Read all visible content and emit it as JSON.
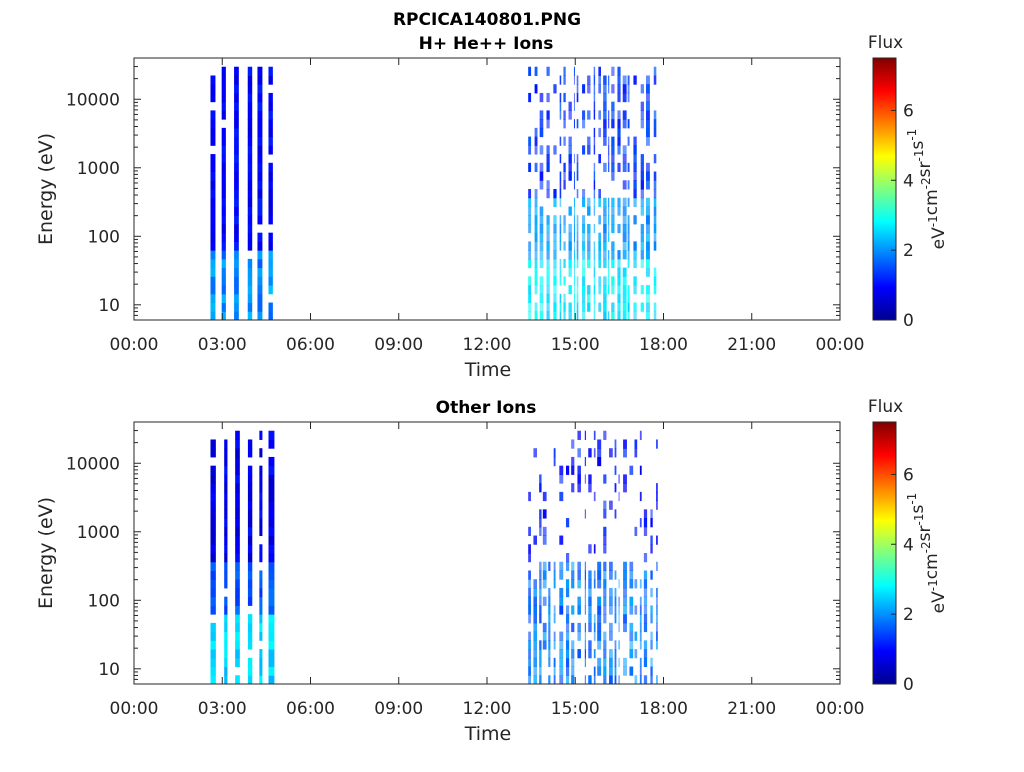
{
  "figure": {
    "title_line1": "RPCICA140801.PNG"
  },
  "chart_data": [
    {
      "type": "heatmap",
      "title": "H+ He++ Ions",
      "xlabel": "Time",
      "ylabel": "Energy (eV)",
      "yscale": "log",
      "ylim": [
        6,
        40000
      ],
      "xlim": [
        "00:00",
        "24:00"
      ],
      "x_ticks": [
        "00:00",
        "03:00",
        "06:00",
        "09:00",
        "12:00",
        "15:00",
        "18:00",
        "21:00",
        "00:00"
      ],
      "y_ticks": [
        10,
        100,
        1000,
        10000
      ],
      "y_tick_labels": [
        "10",
        "100",
        "1000",
        "10000"
      ],
      "colorbar": {
        "label_title": "Flux",
        "unit_label": "eV-1cm-2sr-1s-1",
        "range": [
          0,
          7.5
        ],
        "ticks": [
          0,
          2,
          4,
          6
        ],
        "tick_labels": [
          "0",
          "2",
          "4",
          "6"
        ],
        "colormap": "jet"
      },
      "grid": false,
      "data_intervals": [
        {
          "start": "02:36",
          "end": "04:48",
          "description": "dense vertical stripes, flux ~0.5-2, higher near low energies"
        },
        {
          "start": "13:24",
          "end": "17:48",
          "description": "sparse fine streaks, flux ~1-3 at low energies, ~1 at high energies"
        }
      ]
    },
    {
      "type": "heatmap",
      "title": "Other Ions",
      "xlabel": "Time",
      "ylabel": "Energy (eV)",
      "yscale": "log",
      "ylim": [
        6,
        40000
      ],
      "xlim": [
        "00:00",
        "24:00"
      ],
      "x_ticks": [
        "00:00",
        "03:00",
        "06:00",
        "09:00",
        "12:00",
        "15:00",
        "18:00",
        "21:00",
        "00:00"
      ],
      "y_ticks": [
        10,
        100,
        1000,
        10000
      ],
      "y_tick_labels": [
        "10",
        "100",
        "1000",
        "10000"
      ],
      "colorbar": {
        "label_title": "Flux",
        "unit_label": "eV-1cm-2sr-1s-1",
        "range": [
          0,
          7.5
        ],
        "ticks": [
          0,
          2,
          4,
          6
        ],
        "tick_labels": [
          "0",
          "2",
          "4",
          "6"
        ],
        "colormap": "jet"
      },
      "grid": false,
      "data_intervals": [
        {
          "start": "02:36",
          "end": "04:48",
          "description": "dense vertical stripes, flux ~0.5-2.5"
        },
        {
          "start": "13:24",
          "end": "17:48",
          "description": "sparse streaks, flux ~1-2"
        }
      ]
    }
  ]
}
